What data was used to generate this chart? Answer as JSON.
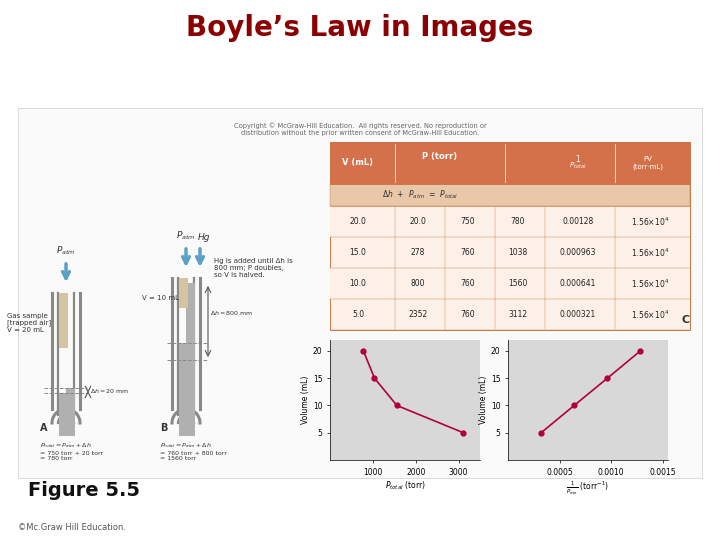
{
  "title": "Boyle’s Law in Images",
  "title_color": "#8B0000",
  "title_fontsize": 20,
  "title_fontstyle": "bold",
  "figure_label": "Figure 5.5",
  "figure_label_fontsize": 14,
  "figure_label_fontstyle": "bold",
  "copyright_text": "©Mc.Graw Hill Education.",
  "copyright_fontsize": 6,
  "background_color": "#ffffff",
  "copyright_notice": "Copyright © McGraw-Hill Education.  All rights reserved. No reproduction or\ndistribution without the prior written consent of McGraw-Hill Education.",
  "table_header_color": "#d4704a",
  "table_subhdr_color": "#e8c4a8",
  "plot_line_color": "#b0003a",
  "tube_color_wall": "#888888",
  "tube_color_gas": "#d4c5a0",
  "tube_color_merc": "#aaaaaa",
  "arrow_color": "#5aa0c8",
  "text_dark": "#222222",
  "graph_bg": "#d8d8d8",
  "img_box_bg": "#fafafa",
  "img_box_edge": "#cccccc",
  "p_vals": [
    780,
    1038,
    1560,
    3112
  ],
  "v_vals": [
    20.0,
    15.0,
    10.0,
    5.0
  ],
  "inv_p": [
    0.001282,
    0.000963,
    0.000641,
    0.000321
  ]
}
